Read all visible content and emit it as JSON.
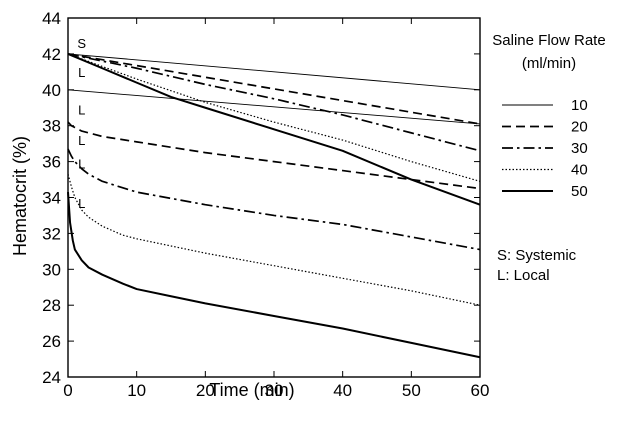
{
  "chart_data": {
    "type": "line",
    "xlabel": "Time (min)",
    "ylabel": "Hematocrit (%)",
    "xlim": [
      0,
      60
    ],
    "ylim": [
      24,
      44
    ],
    "xticks": [
      0,
      10,
      20,
      30,
      40,
      50,
      60
    ],
    "yticks": [
      24,
      26,
      28,
      30,
      32,
      34,
      36,
      38,
      40,
      42,
      44
    ],
    "grid": false,
    "legend": {
      "title_line1": "Saline Flow Rate",
      "title_line2": "(ml/min)",
      "position": "right",
      "entries": [
        "10",
        "20",
        "30",
        "40",
        "50"
      ]
    },
    "notes": [
      "S: Systemic",
      "L: Local"
    ],
    "curve_tags": [
      {
        "text": "S",
        "x": 2,
        "y": 42.6
      },
      {
        "text": "L",
        "x": 2,
        "y": 41.0
      },
      {
        "text": "L",
        "x": 2,
        "y": 38.9
      },
      {
        "text": "L",
        "x": 2,
        "y": 37.2
      },
      {
        "text": "L",
        "x": 2,
        "y": 35.9
      },
      {
        "text": "L",
        "x": 2,
        "y": 33.7
      }
    ],
    "series": [
      {
        "name": "10",
        "curve": "systemic",
        "style": "solid-thin",
        "x": [
          0,
          60
        ],
        "y": [
          42.0,
          40.0
        ]
      },
      {
        "name": "10",
        "curve": "local",
        "style": "solid-thin",
        "x": [
          0,
          60
        ],
        "y": [
          40.0,
          38.1
        ]
      },
      {
        "name": "20",
        "curve": "systemic",
        "style": "dashed",
        "x": [
          0,
          60
        ],
        "y": [
          42.0,
          38.1
        ]
      },
      {
        "name": "20",
        "curve": "local",
        "style": "dashed",
        "x": [
          0,
          0.5,
          1,
          2,
          3,
          5,
          10,
          20,
          30,
          40,
          50,
          60
        ],
        "y": [
          38.2,
          38.0,
          37.9,
          37.7,
          37.6,
          37.4,
          37.1,
          36.5,
          36.0,
          35.5,
          35.0,
          34.5
        ]
      },
      {
        "name": "30",
        "curve": "systemic",
        "style": "dash-dot",
        "x": [
          0,
          10,
          20,
          30,
          40,
          50,
          60
        ],
        "y": [
          42.0,
          41.2,
          40.3,
          39.5,
          38.6,
          37.6,
          36.6
        ]
      },
      {
        "name": "30",
        "curve": "local",
        "style": "dash-dot",
        "x": [
          0,
          0.5,
          1,
          2,
          3,
          5,
          10,
          20,
          30,
          40,
          50,
          60
        ],
        "y": [
          36.7,
          36.3,
          36.0,
          35.6,
          35.3,
          34.9,
          34.3,
          33.6,
          33.0,
          32.5,
          31.8,
          31.1
        ]
      },
      {
        "name": "40",
        "curve": "systemic",
        "style": "dotted",
        "x": [
          0,
          10,
          20,
          30,
          40,
          50,
          60
        ],
        "y": [
          42.0,
          40.6,
          39.3,
          38.2,
          37.2,
          36.0,
          34.9
        ]
      },
      {
        "name": "40",
        "curve": "local",
        "style": "dotted",
        "x": [
          0,
          0.5,
          1,
          2,
          3,
          5,
          8,
          10,
          20,
          30,
          40,
          50,
          60
        ],
        "y": [
          35.3,
          34.6,
          34.0,
          33.3,
          32.9,
          32.4,
          31.9,
          31.7,
          30.9,
          30.2,
          29.5,
          28.8,
          28.0
        ]
      },
      {
        "name": "50",
        "curve": "systemic",
        "style": "solid-thick",
        "x": [
          0,
          5,
          10,
          15,
          20,
          30,
          40,
          50,
          60
        ],
        "y": [
          42.0,
          41.2,
          40.4,
          39.6,
          39.0,
          37.8,
          36.6,
          35.0,
          33.6
        ]
      },
      {
        "name": "50",
        "curve": "local",
        "style": "solid-thick",
        "x": [
          0,
          0.3,
          0.7,
          1,
          2,
          3,
          5,
          8,
          10,
          15,
          20,
          30,
          40,
          50,
          60
        ],
        "y": [
          34.3,
          32.6,
          31.6,
          31.1,
          30.5,
          30.1,
          29.7,
          29.2,
          28.9,
          28.5,
          28.1,
          27.4,
          26.7,
          25.9,
          25.1
        ]
      }
    ]
  }
}
